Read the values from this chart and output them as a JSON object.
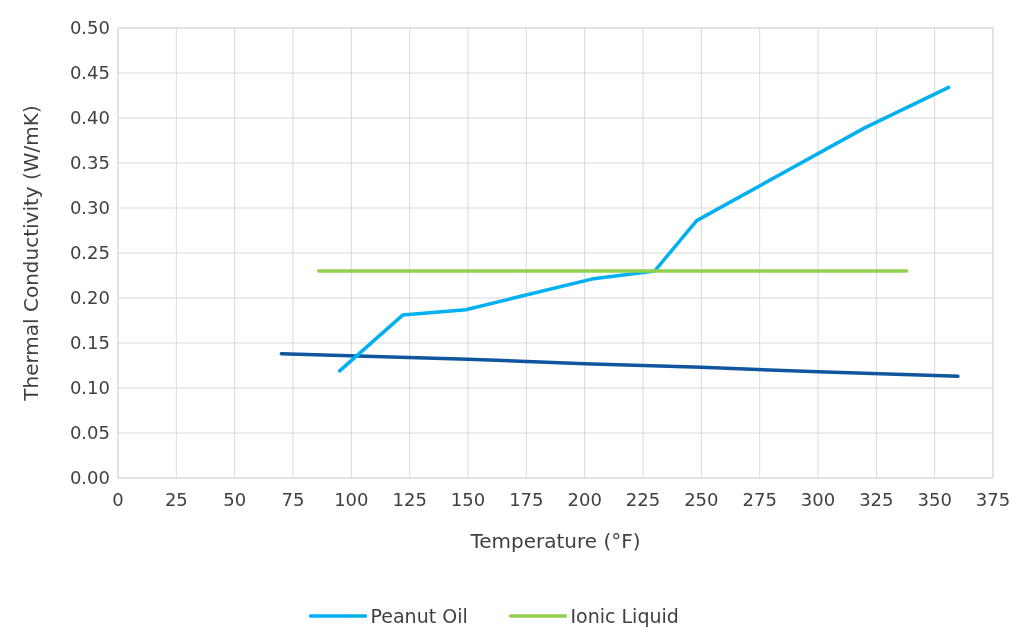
{
  "chart_data": {
    "type": "line",
    "xlabel": "Temperature (°F)",
    "ylabel": "Thermal Conductivity (W/mK)",
    "xlim": [
      0,
      375
    ],
    "xticks": [
      0,
      25,
      50,
      75,
      100,
      125,
      150,
      175,
      200,
      225,
      250,
      275,
      300,
      325,
      350,
      375
    ],
    "ylim": [
      0,
      0.5
    ],
    "yticks": [
      {
        "value": 0,
        "label": "0.00"
      },
      {
        "value": 0.05,
        "label": "0.05"
      },
      {
        "value": 0.1,
        "label": "0.10"
      },
      {
        "value": 0.15,
        "label": "0.15"
      },
      {
        "value": 0.2,
        "label": "0.20"
      },
      {
        "value": 0.25,
        "label": "0.25"
      },
      {
        "value": 0.3,
        "label": "0.30"
      },
      {
        "value": 0.35,
        "label": "0.35"
      },
      {
        "value": 0.4,
        "label": "0.40"
      },
      {
        "value": 0.45,
        "label": "0.45"
      },
      {
        "value": 0.5,
        "label": "0.50"
      }
    ],
    "grid": true,
    "legend": "bottom",
    "marker": "none",
    "line_style": "solid",
    "series": [
      {
        "color": "#0f569e",
        "x": [
          70,
          150,
          200,
          250,
          300,
          360
        ],
        "values": [
          0.138,
          0.132,
          0.127,
          0.123,
          0.118,
          0.113
        ]
      },
      {
        "name": "Peanut Oil",
        "color": "#00b0f0",
        "x": [
          95,
          122,
          149,
          203,
          230,
          248,
          320,
          356
        ],
        "values": [
          0.119,
          0.181,
          0.187,
          0.221,
          0.23,
          0.286,
          0.389,
          0.434
        ]
      },
      {
        "name": "Ionic Liquid",
        "color": "#92d050",
        "x": [
          86,
          338
        ],
        "values": [
          0.23,
          0.23
        ]
      }
    ]
  }
}
